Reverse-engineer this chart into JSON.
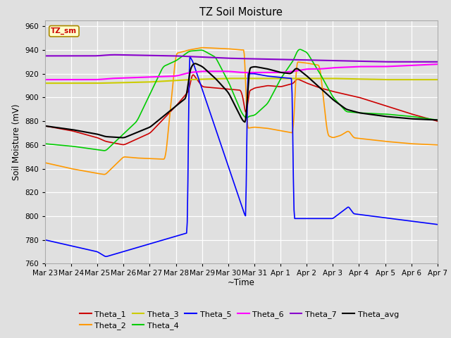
{
  "title": "TZ Soil Moisture",
  "ylabel": "Soil Moisture (mV)",
  "xlabel": "~Time",
  "legend_label": "TZ_sm",
  "ylim": [
    760,
    965
  ],
  "yticks": [
    760,
    780,
    800,
    820,
    840,
    860,
    880,
    900,
    920,
    940,
    960
  ],
  "x_tick_labels": [
    "Mar 23",
    "Mar 24",
    "Mar 25",
    "Mar 26",
    "Mar 27",
    "Mar 28",
    "Mar 29",
    "Mar 30",
    "Mar 31",
    "Apr 1",
    "Apr 2",
    "Apr 3",
    "Apr 4",
    "Apr 5",
    "Apr 6",
    "Apr 7"
  ],
  "colors": {
    "Theta_1": "#cc0000",
    "Theta_2": "#ff9900",
    "Theta_3": "#cccc00",
    "Theta_4": "#00cc00",
    "Theta_5": "#0000ff",
    "Theta_6": "#ff00ff",
    "Theta_7": "#8800cc",
    "Theta_avg": "#000000"
  },
  "background_color": "#e0e0e0",
  "plot_background": "#e0e0e0",
  "legend_box_color": "#ffffcc",
  "legend_box_edge": "#aa8800"
}
